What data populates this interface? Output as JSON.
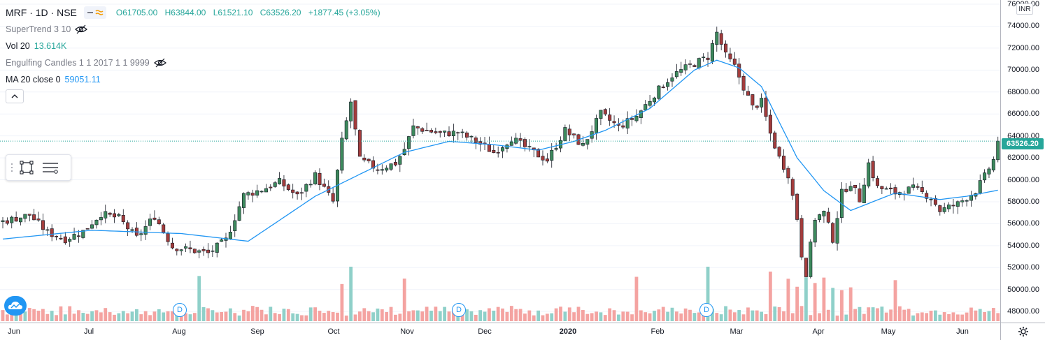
{
  "header": {
    "symbol": "MRF · 1D · NSE",
    "open": "O61705.00",
    "high": "H63844.00",
    "low": "L61521.10",
    "close": "C63526.20",
    "change": "+1877.45 (+3.05%)"
  },
  "indicators": {
    "supertrend": {
      "label": "SuperTrend 3 10"
    },
    "volume": {
      "label": "Vol 20",
      "value": "13.614K"
    },
    "engulfing": {
      "label": "Engulfing Candles 1 1 2017 1 1 9999"
    },
    "ma": {
      "label": "MA 20 close 0",
      "value": "59051.11"
    }
  },
  "price_axis": {
    "currency": "INR",
    "ticks": [
      "76000.00",
      "74000.00",
      "72000.00",
      "70000.00",
      "68000.00",
      "66000.00",
      "64000.00",
      "62000.00",
      "60000.00",
      "58000.00",
      "56000.00",
      "54000.00",
      "52000.00",
      "50000.00",
      "48000.00"
    ],
    "last_price": "63526.20"
  },
  "time_axis": {
    "ticks": [
      {
        "label": "Jun",
        "bold": false
      },
      {
        "label": "Jul",
        "bold": false
      },
      {
        "label": "Aug",
        "bold": false
      },
      {
        "label": "Sep",
        "bold": false
      },
      {
        "label": "Oct",
        "bold": false
      },
      {
        "label": "Nov",
        "bold": false
      },
      {
        "label": "Dec",
        "bold": false
      },
      {
        "label": "2020",
        "bold": true
      },
      {
        "label": "Feb",
        "bold": false
      },
      {
        "label": "Mar",
        "bold": false
      },
      {
        "label": "Apr",
        "bold": false
      },
      {
        "label": "May",
        "bold": false
      },
      {
        "label": "Jun",
        "bold": false
      }
    ]
  },
  "dividend_markers": [
    "D",
    "D",
    "D"
  ],
  "colors": {
    "up": "#26a69a",
    "down": "#ef5350",
    "up_body": "#3d8a5d",
    "down_body": "#a33c3c",
    "ma": "#2196f3",
    "vol_up": "#8fd0c9",
    "vol_down": "#f4a3a1"
  },
  "chart_data": {
    "type": "candlestick",
    "title": "MRF · 1D · NSE",
    "ylim": [
      47500,
      76000
    ],
    "price_path_keypoints": [
      [
        0,
        56200
      ],
      [
        6,
        56800
      ],
      [
        10,
        55200
      ],
      [
        14,
        54600
      ],
      [
        18,
        55300
      ],
      [
        22,
        56900
      ],
      [
        26,
        56500
      ],
      [
        30,
        54700
      ],
      [
        34,
        56700
      ],
      [
        38,
        53900
      ],
      [
        42,
        53600
      ],
      [
        46,
        53300
      ],
      [
        50,
        54500
      ],
      [
        54,
        58600
      ],
      [
        58,
        59100
      ],
      [
        62,
        59800
      ],
      [
        66,
        58500
      ],
      [
        70,
        60400
      ],
      [
        74,
        58000
      ],
      [
        76,
        63500
      ],
      [
        78,
        67100
      ],
      [
        80,
        61800
      ],
      [
        84,
        61000
      ],
      [
        88,
        61500
      ],
      [
        90,
        62800
      ],
      [
        92,
        64800
      ],
      [
        98,
        64200
      ],
      [
        102,
        64300
      ],
      [
        106,
        63500
      ],
      [
        110,
        62500
      ],
      [
        114,
        63800
      ],
      [
        118,
        62700
      ],
      [
        122,
        61800
      ],
      [
        126,
        64500
      ],
      [
        130,
        63100
      ],
      [
        134,
        66000
      ],
      [
        138,
        64800
      ],
      [
        142,
        65800
      ],
      [
        146,
        67800
      ],
      [
        150,
        69500
      ],
      [
        154,
        70400
      ],
      [
        158,
        71200
      ],
      [
        160,
        73400
      ],
      [
        162,
        71300
      ],
      [
        164,
        70300
      ],
      [
        168,
        66600
      ],
      [
        170,
        67100
      ],
      [
        172,
        64200
      ],
      [
        174,
        62000
      ],
      [
        176,
        60500
      ],
      [
        178,
        56500
      ],
      [
        179,
        53200
      ],
      [
        180,
        51500
      ],
      [
        182,
        56500
      ],
      [
        184,
        57000
      ],
      [
        186,
        54600
      ],
      [
        188,
        58800
      ],
      [
        190,
        59700
      ],
      [
        192,
        58200
      ],
      [
        194,
        61500
      ],
      [
        196,
        59300
      ],
      [
        200,
        58800
      ],
      [
        204,
        59200
      ],
      [
        208,
        58400
      ],
      [
        210,
        57200
      ],
      [
        214,
        57800
      ],
      [
        218,
        59000
      ],
      [
        220,
        60300
      ],
      [
        222,
        61800
      ],
      [
        223,
        63526
      ]
    ],
    "ma20_keypoints": [
      [
        0,
        54600
      ],
      [
        20,
        55400
      ],
      [
        40,
        55100
      ],
      [
        55,
        54400
      ],
      [
        70,
        58500
      ],
      [
        80,
        60500
      ],
      [
        90,
        62500
      ],
      [
        100,
        63500
      ],
      [
        110,
        63200
      ],
      [
        120,
        62700
      ],
      [
        128,
        63500
      ],
      [
        135,
        64500
      ],
      [
        145,
        66500
      ],
      [
        155,
        70000
      ],
      [
        160,
        70900
      ],
      [
        165,
        70200
      ],
      [
        170,
        68500
      ],
      [
        178,
        62000
      ],
      [
        184,
        59000
      ],
      [
        190,
        57200
      ],
      [
        200,
        58800
      ],
      [
        210,
        58200
      ],
      [
        216,
        58500
      ],
      [
        223,
        59051
      ]
    ],
    "bars": 224
  }
}
